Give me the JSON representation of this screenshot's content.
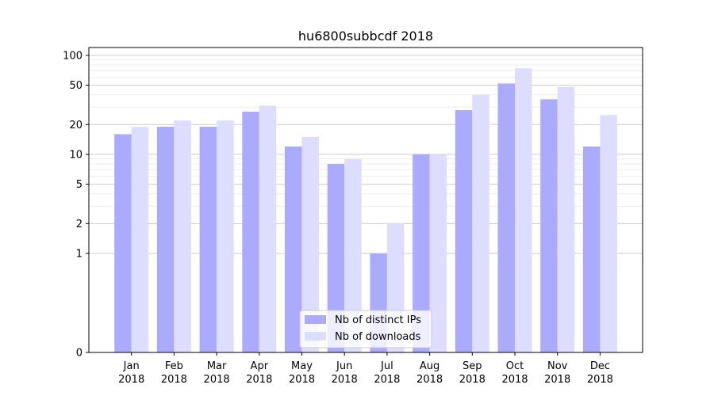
{
  "chart_data": {
    "type": "bar",
    "title": "hu6800subbcdf 2018",
    "xlabel": "",
    "ylabel": "",
    "categories": [
      [
        "Jan",
        "2018"
      ],
      [
        "Feb",
        "2018"
      ],
      [
        "Mar",
        "2018"
      ],
      [
        "Apr",
        "2018"
      ],
      [
        "May",
        "2018"
      ],
      [
        "Jun",
        "2018"
      ],
      [
        "Jul",
        "2018"
      ],
      [
        "Aug",
        "2018"
      ],
      [
        "Sep",
        "2018"
      ],
      [
        "Oct",
        "2018"
      ],
      [
        "Nov",
        "2018"
      ],
      [
        "Dec",
        "2018"
      ]
    ],
    "series": [
      {
        "name": "Nb of distinct IPs",
        "color": "#aaaaff",
        "values": [
          16,
          19,
          19,
          27,
          12,
          8,
          1,
          10,
          28,
          52,
          36,
          12
        ]
      },
      {
        "name": "Nb of downloads",
        "color": "#ddddff",
        "values": [
          19,
          22,
          22,
          31,
          15,
          9,
          2,
          10,
          40,
          74,
          48,
          25
        ]
      }
    ],
    "y_scale": "symlog",
    "yticks": [
      0,
      1,
      2,
      5,
      10,
      20,
      50,
      100
    ],
    "ylim": [
      0,
      120
    ],
    "grid": true,
    "legend_position": "lower-center"
  }
}
